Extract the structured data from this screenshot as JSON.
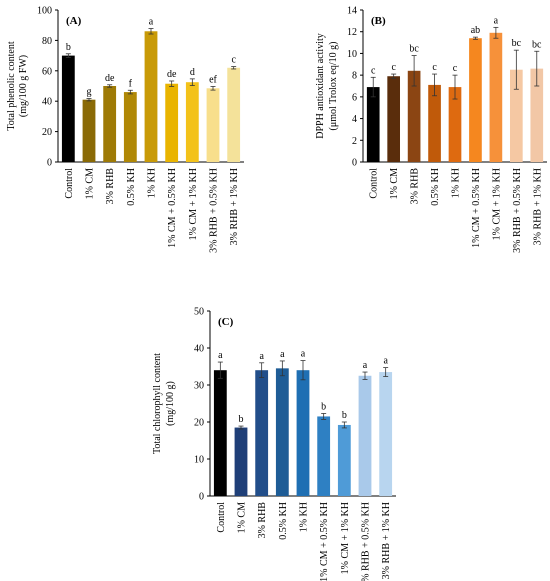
{
  "chart_data": [
    {
      "type": "bar",
      "panel": "(A)",
      "ylabel": "Total phenolic content (mg/100 g FW)",
      "ylabel_lines": [
        "Total phenolic content",
        "(mg/100 g FW)"
      ],
      "ylim": [
        0,
        100
      ],
      "yticks": [
        0,
        20,
        40,
        60,
        80,
        100
      ],
      "categories": [
        "Control",
        "1% CM",
        "3% RHB",
        "0.5% KH",
        "1% KH",
        "1% CM + 0.5% KH",
        "1% CM + 1% KH",
        "3% RHB + 0.5% KH",
        "3% RHB + 1% KH"
      ],
      "values": [
        70,
        41,
        50,
        46,
        86,
        51.5,
        52.5,
        48.5,
        62
      ],
      "errors": [
        1.2,
        0.8,
        0.8,
        1.2,
        1.8,
        1.8,
        2.2,
        1.2,
        0.8
      ],
      "letters": [
        "b",
        "g",
        "de",
        "f",
        "a",
        "de",
        "d",
        "ef",
        "c"
      ],
      "colors": [
        "#000000",
        "#8a6a06",
        "#9e7a06",
        "#b08806",
        "#c89a08",
        "#e9b400",
        "#f3c21a",
        "#f8df8c",
        "#f4e29a"
      ],
      "grid": false
    },
    {
      "type": "bar",
      "panel": "(B)",
      "ylabel": "DPPH antioxidant activity (μmol Trolox eq/10 g)",
      "ylabel_lines": [
        "DPPH antioxidant activity",
        "(μmol Trolox eq/10 g)"
      ],
      "ylim": [
        0,
        14
      ],
      "yticks": [
        0,
        2,
        4,
        6,
        8,
        10,
        12,
        14
      ],
      "categories": [
        "Control",
        "1% CM",
        "3% RHB",
        "0.5% KH",
        "1% KH",
        "1% CM + 0.5% KH",
        "1% CM + 1% KH",
        "3% RHB + 0.5% KH",
        "3% RHB + 1% KH"
      ],
      "values": [
        6.9,
        7.9,
        8.4,
        7.1,
        6.9,
        11.4,
        11.9,
        8.5,
        8.6
      ],
      "errors": [
        0.9,
        0.2,
        1.4,
        1.0,
        1.1,
        0.1,
        0.5,
        1.8,
        1.6
      ],
      "letters": [
        "c",
        "c",
        "bc",
        "c",
        "c",
        "ab",
        "a",
        "bc",
        "bc"
      ],
      "colors": [
        "#000000",
        "#5a2d0c",
        "#8b4513",
        "#c05a0a",
        "#de6a10",
        "#f5871f",
        "#f6913a",
        "#f5c8a3",
        "#f2c7a6"
      ],
      "grid": false
    },
    {
      "type": "bar",
      "panel": "(C)",
      "ylabel": "Total chlorophyll content (mg/100 g)",
      "ylabel_lines": [
        "Total chlorophyll content",
        "(mg/100 g)"
      ],
      "ylim": [
        0,
        50
      ],
      "yticks": [
        0,
        10,
        20,
        30,
        40,
        50
      ],
      "categories": [
        "Control",
        "1% CM",
        "3% RHB",
        "0.5% KH",
        "1% KH",
        "1% CM + 0.5% KH",
        "1% CM + 1% KH",
        "3% RHB + 0.5% KH",
        "3% RHB + 1% KH"
      ],
      "values": [
        34,
        18.5,
        34,
        34.5,
        34,
        21.5,
        19.2,
        32.5,
        33.5
      ],
      "errors": [
        2.2,
        0.4,
        2.0,
        2.0,
        2.6,
        0.8,
        0.8,
        1.0,
        1.2
      ],
      "letters": [
        "a",
        "b",
        "a",
        "a",
        "a",
        "b",
        "b",
        "a",
        "a"
      ],
      "colors": [
        "#000000",
        "#1f3f78",
        "#224e8a",
        "#1e5c96",
        "#1f6fb3",
        "#2e80c3",
        "#4f9bd7",
        "#a9c9ea",
        "#b8d5ef"
      ],
      "grid": false
    }
  ]
}
